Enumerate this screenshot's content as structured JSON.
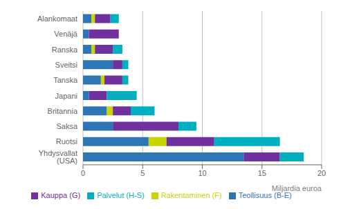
{
  "chart_data": {
    "type": "bar",
    "orientation": "horizontal",
    "stacked": true,
    "categories": [
      "Yhdysvallat (USA)",
      "Ruotsi",
      "Saksa",
      "Britannia",
      "Japani",
      "Tanska",
      "Sveitsi",
      "Ranska",
      "Venäjä",
      "Alankomaat"
    ],
    "series": [
      {
        "name": "Teollisuus (B-E)",
        "color": "#2E75B6",
        "values": [
          13.5,
          5.5,
          2.5,
          2.0,
          0.5,
          1.5,
          2.5,
          0.7,
          0.5,
          0.7
        ]
      },
      {
        "name": "Rakentaminen (F)",
        "color": "#C9D400",
        "values": [
          0.0,
          1.5,
          0.0,
          0.5,
          0.0,
          0.3,
          0.0,
          0.3,
          0.0,
          0.3
        ]
      },
      {
        "name": "Kauppa (G)",
        "color": "#7030A0",
        "values": [
          3.0,
          4.0,
          5.5,
          1.5,
          1.5,
          1.5,
          0.8,
          1.5,
          2.5,
          1.3
        ]
      },
      {
        "name": "Palvelut (H-S)",
        "color": "#00B0C0",
        "values": [
          2.0,
          5.5,
          1.5,
          2.0,
          2.5,
          0.5,
          0.5,
          0.8,
          0.0,
          0.7
        ]
      }
    ],
    "xlabel": "Miljardia euroa",
    "xlim": [
      0,
      20
    ],
    "xticks": [
      0,
      5,
      10,
      15,
      20
    ],
    "grid": true,
    "legend": "bottom"
  }
}
